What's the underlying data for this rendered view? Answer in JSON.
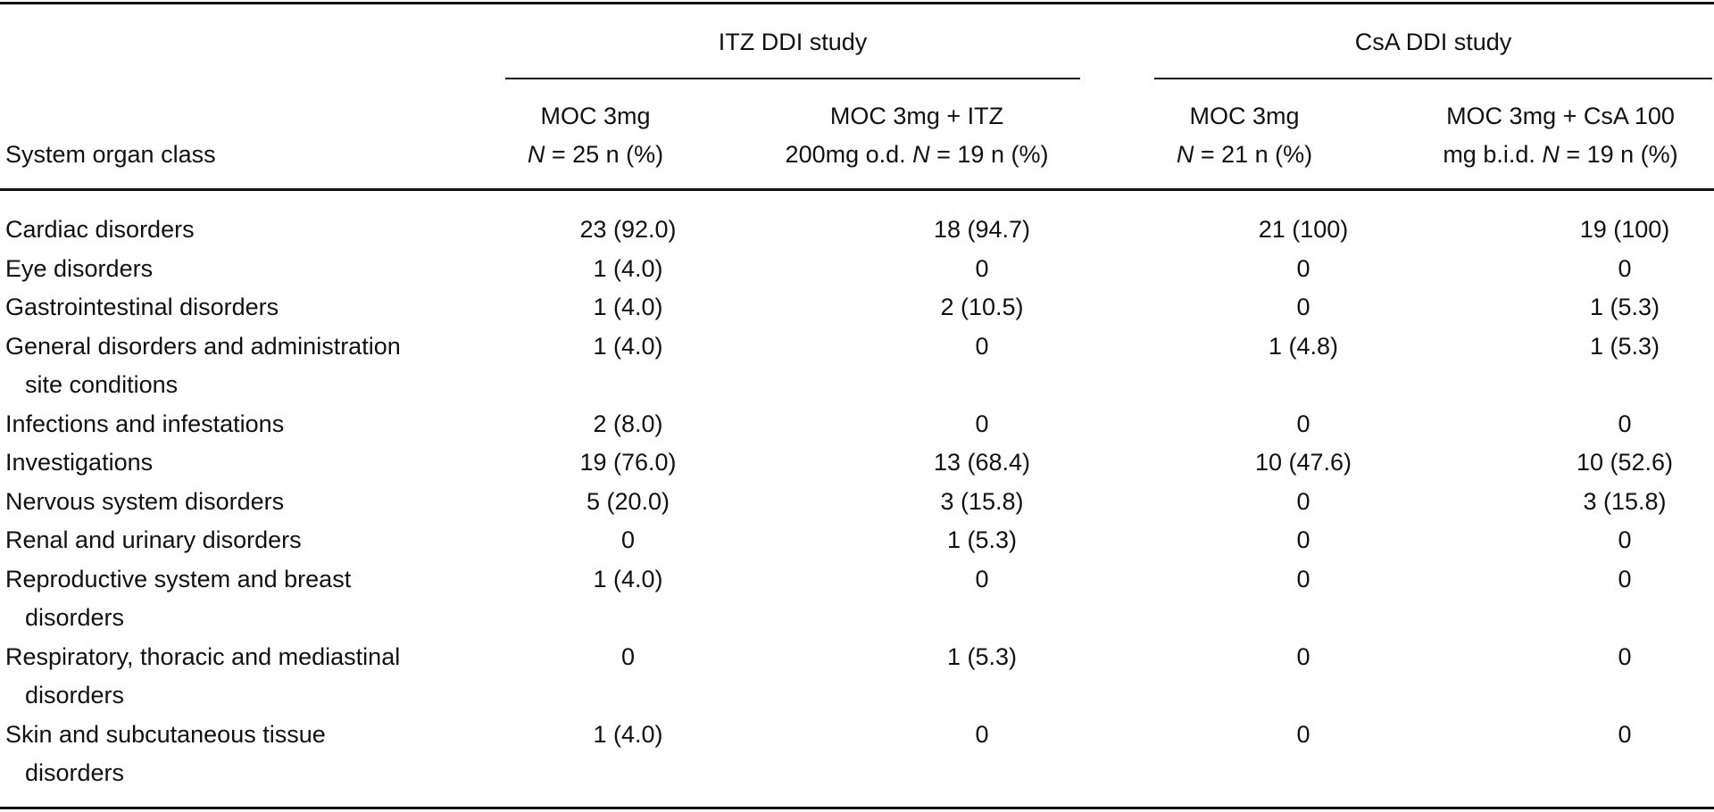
{
  "table": {
    "stub_header": "System organ class",
    "groups": [
      {
        "label": "ITZ DDI study"
      },
      {
        "label": "CsA DDI study"
      }
    ],
    "columns": [
      {
        "line1": "MOC 3mg",
        "line2_pre": "",
        "line2_n": "N",
        "line2_post": " = 25 n (%)"
      },
      {
        "line1": "MOC 3mg + ITZ",
        "line2_pre": "200mg o.d. ",
        "line2_n": "N",
        "line2_post": " = 19 n (%)"
      },
      {
        "line1": "MOC 3mg",
        "line2_pre": "",
        "line2_n": "N",
        "line2_post": " = 21 n (%)"
      },
      {
        "line1": "MOC 3mg + CsA 100",
        "line2_pre": "mg b.i.d. ",
        "line2_n": "N",
        "line2_post": " = 19 n (%)"
      }
    ],
    "rows": [
      {
        "label": "Cardiac disorders",
        "values": [
          "23 (92.0)",
          "18 (94.7)",
          "21 (100)",
          "19 (100)"
        ]
      },
      {
        "label": "Eye disorders",
        "values": [
          "1 (4.0)",
          "0",
          "0",
          "0"
        ]
      },
      {
        "label": "Gastrointestinal disorders",
        "values": [
          "1 (4.0)",
          "2 (10.5)",
          "0",
          "1 (5.3)"
        ]
      },
      {
        "label": "General disorders and administration site conditions",
        "values": [
          "1 (4.0)",
          "0",
          "1 (4.8)",
          "1 (5.3)"
        ]
      },
      {
        "label": "Infections and infestations",
        "values": [
          "2 (8.0)",
          "0",
          "0",
          "0"
        ]
      },
      {
        "label": "Investigations",
        "values": [
          "19 (76.0)",
          "13 (68.4)",
          "10 (47.6)",
          "10 (52.6)"
        ]
      },
      {
        "label": "Nervous system disorders",
        "values": [
          "5 (20.0)",
          "3 (15.8)",
          "0",
          "3 (15.8)"
        ]
      },
      {
        "label": "Renal and urinary disorders",
        "values": [
          "0",
          "1 (5.3)",
          "0",
          "0"
        ]
      },
      {
        "label": "Reproductive system and breast disorders",
        "values": [
          "1 (4.0)",
          "0",
          "0",
          "0"
        ]
      },
      {
        "label": "Respiratory, thoracic and mediastinal disorders",
        "values": [
          "0",
          "1 (5.3)",
          "0",
          "0"
        ]
      },
      {
        "label": "Skin and subcutaneous tissue disorders",
        "values": [
          "1 (4.0)",
          "0",
          "0",
          "0"
        ]
      }
    ]
  }
}
